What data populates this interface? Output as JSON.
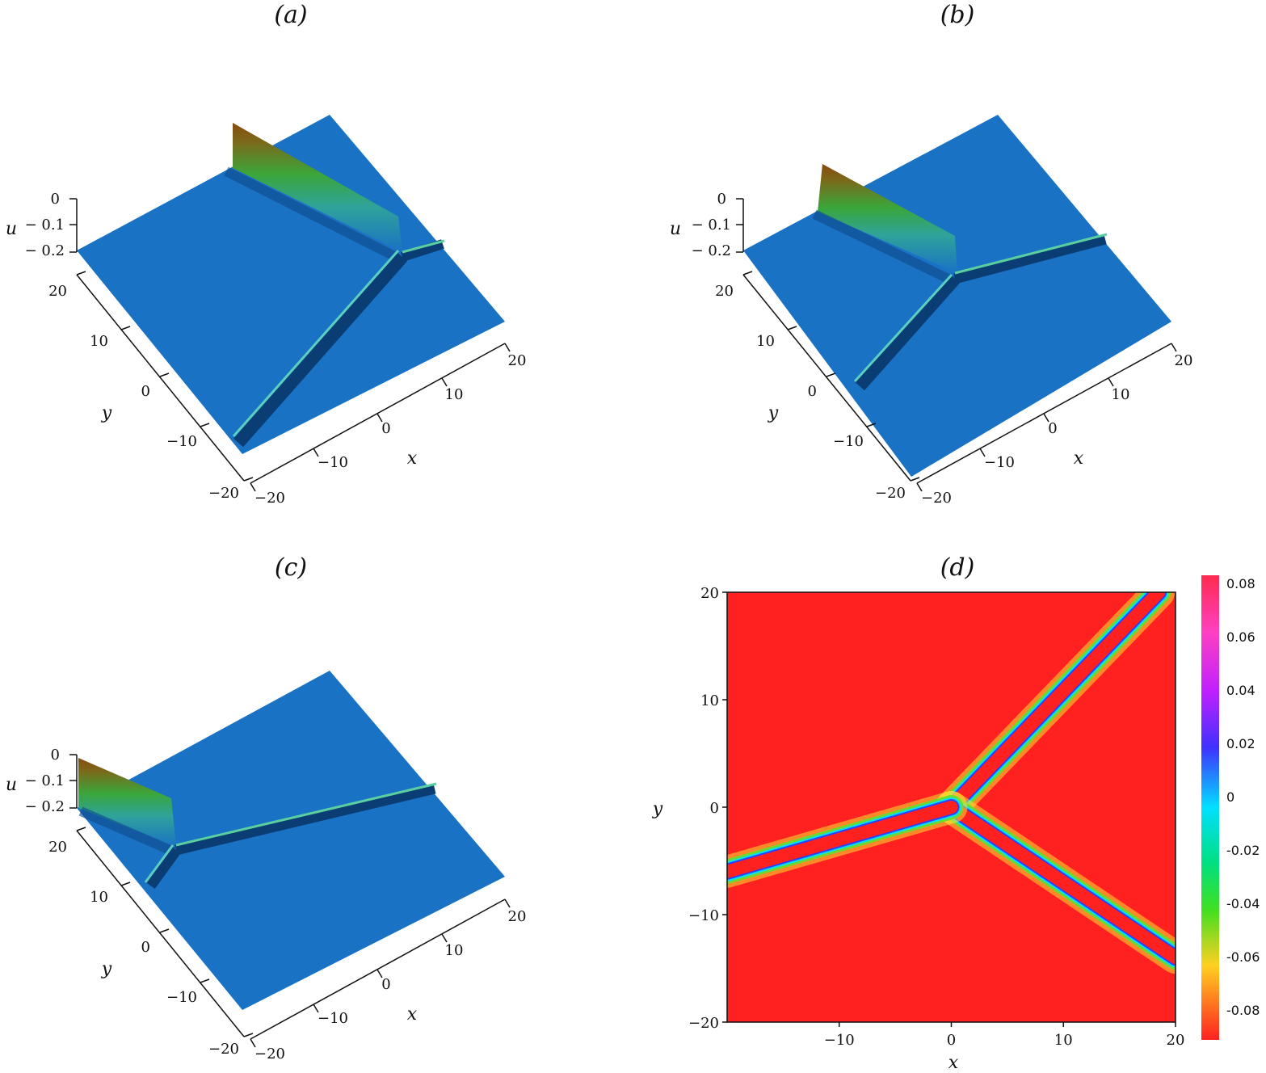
{
  "colors": {
    "surface": "#1a72c4",
    "ridge_top": "#8a4a10",
    "ridge_mid": "#3aa63a",
    "trough": "#0b3d75",
    "heat_background": "#ff2020"
  },
  "chart_data": [
    {
      "type": "surface3d",
      "title": "(a)",
      "xlabel": "x",
      "ylabel": "y",
      "zlabel": "u",
      "xticks": [
        "−20",
        "−10",
        "0",
        "10",
        "20"
      ],
      "yticks": [
        "20",
        "10",
        "0",
        "−10",
        "−20"
      ],
      "zticks": [
        "0",
        "− 0.1",
        "− 0.2"
      ],
      "xlim": [
        -20,
        20
      ],
      "ylim": [
        -20,
        20
      ],
      "zlim": [
        -0.2,
        0
      ],
      "grid": false
    },
    {
      "type": "surface3d",
      "title": "(b)",
      "xlabel": "x",
      "ylabel": "y",
      "zlabel": "u",
      "xticks": [
        "−20",
        "−10",
        "0",
        "10",
        "20"
      ],
      "yticks": [
        "20",
        "10",
        "0",
        "−10",
        "−20"
      ],
      "zticks": [
        "0",
        "− 0.1",
        "− 0.2"
      ],
      "xlim": [
        -20,
        20
      ],
      "ylim": [
        -20,
        20
      ],
      "zlim": [
        -0.2,
        0
      ],
      "grid": false
    },
    {
      "type": "surface3d",
      "title": "(c)",
      "xlabel": "x",
      "ylabel": "y",
      "zlabel": "u",
      "xticks": [
        "−20",
        "−10",
        "0",
        "10",
        "20"
      ],
      "yticks": [
        "20",
        "10",
        "0",
        "−10",
        "−20"
      ],
      "zticks": [
        "0",
        "− 0.1",
        "− 0.2"
      ],
      "xlim": [
        -20,
        20
      ],
      "ylim": [
        -20,
        20
      ],
      "zlim": [
        -0.2,
        0
      ],
      "grid": false
    },
    {
      "type": "heatmap",
      "title": "(d)",
      "xlabel": "x",
      "ylabel": "y",
      "xticks": [
        "−10",
        "0",
        "10",
        "20"
      ],
      "yticks": [
        "20",
        "10",
        "0",
        "−10",
        "−20"
      ],
      "xlim": [
        -20,
        20
      ],
      "ylim": [
        -20,
        20
      ],
      "colorbar": {
        "ticks": [
          "0.08",
          "0.06",
          "0.04",
          "0.02",
          "0",
          "-0.02",
          "-0.04",
          "-0.06",
          "-0.08"
        ],
        "range": [
          -0.09,
          0.09
        ]
      },
      "branches": [
        {
          "from": [
            0,
            0
          ],
          "to": [
            18.5,
            20
          ]
        },
        {
          "from": [
            0,
            0
          ],
          "to": [
            20,
            -14
          ]
        },
        {
          "from": [
            0,
            0
          ],
          "to": [
            -20,
            -6
          ]
        }
      ],
      "grid": false
    }
  ]
}
